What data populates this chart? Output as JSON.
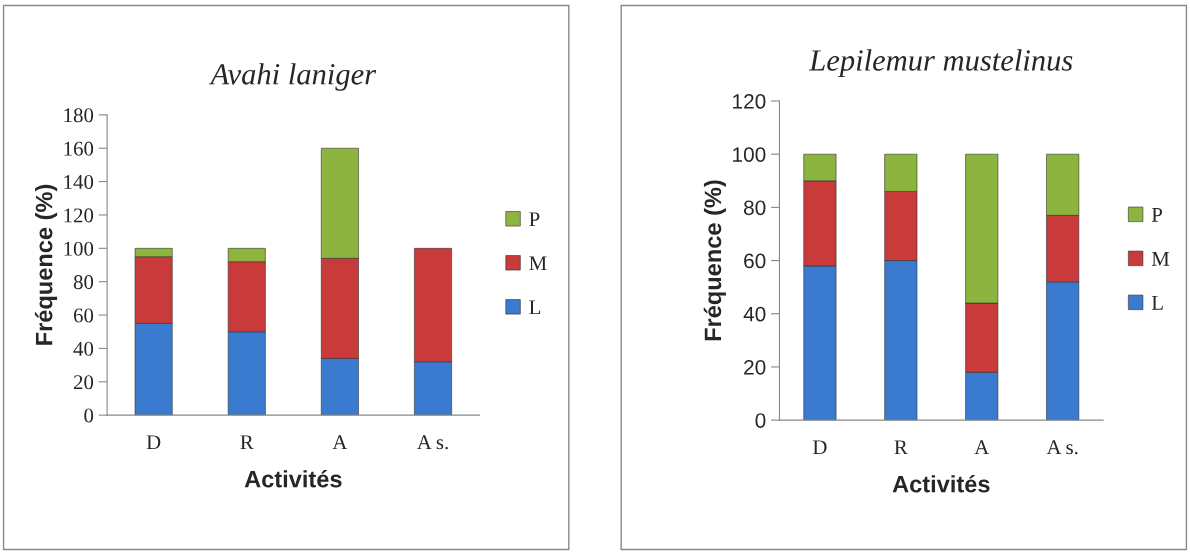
{
  "chart_data": [
    {
      "type": "bar",
      "title": "Avahi laniger",
      "xlabel": "Activités",
      "ylabel": "Fréquence (%)",
      "categories": [
        "D",
        "R",
        "A",
        "A s."
      ],
      "stacked": true,
      "ylim": [
        0,
        180
      ],
      "yticks": [
        0,
        20,
        40,
        60,
        80,
        100,
        120,
        140,
        160,
        180
      ],
      "legend": "right",
      "grid": false,
      "series": [
        {
          "name": "L",
          "color": "#3a7bd0",
          "values": [
            55,
            50,
            34,
            32
          ]
        },
        {
          "name": "M",
          "color": "#c93a3a",
          "values": [
            40,
            42,
            60,
            68
          ]
        },
        {
          "name": "P",
          "color": "#8db43e",
          "values": [
            5,
            8,
            66,
            0
          ]
        }
      ]
    },
    {
      "type": "bar",
      "title": "Lepilemur mustelinus",
      "xlabel": "Activités",
      "ylabel": "Fréquence (%)",
      "categories": [
        "D",
        "R",
        "A",
        "A s."
      ],
      "stacked": true,
      "ylim": [
        0,
        120
      ],
      "yticks": [
        0,
        20,
        40,
        60,
        80,
        100,
        120
      ],
      "legend": "right",
      "grid": false,
      "series": [
        {
          "name": "L",
          "color": "#3a7bd0",
          "values": [
            58,
            60,
            18,
            52
          ]
        },
        {
          "name": "M",
          "color": "#c93a3a",
          "values": [
            32,
            26,
            26,
            25
          ]
        },
        {
          "name": "P",
          "color": "#8db43e",
          "values": [
            10,
            14,
            56,
            23
          ]
        }
      ]
    }
  ]
}
